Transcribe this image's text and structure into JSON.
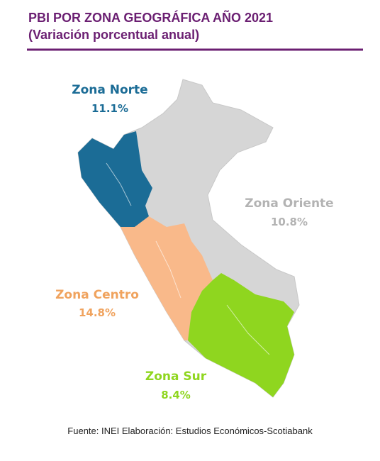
{
  "header": {
    "title": "PBI POR ZONA GEOGRÁFICA AÑO 2021",
    "subtitle": "(Variación porcentual anual)"
  },
  "regions": [
    {
      "name": "Zona Norte",
      "value": "11.1%"
    },
    {
      "name": "Zona Oriente",
      "value": "10.8%"
    },
    {
      "name": "Zona Centro",
      "value": "14.8%"
    },
    {
      "name": "Zona Sur",
      "value": "8.4%"
    }
  ],
  "source": "Fuente: INEI Elaboración: Estudios Económicos-Scotiabank"
}
